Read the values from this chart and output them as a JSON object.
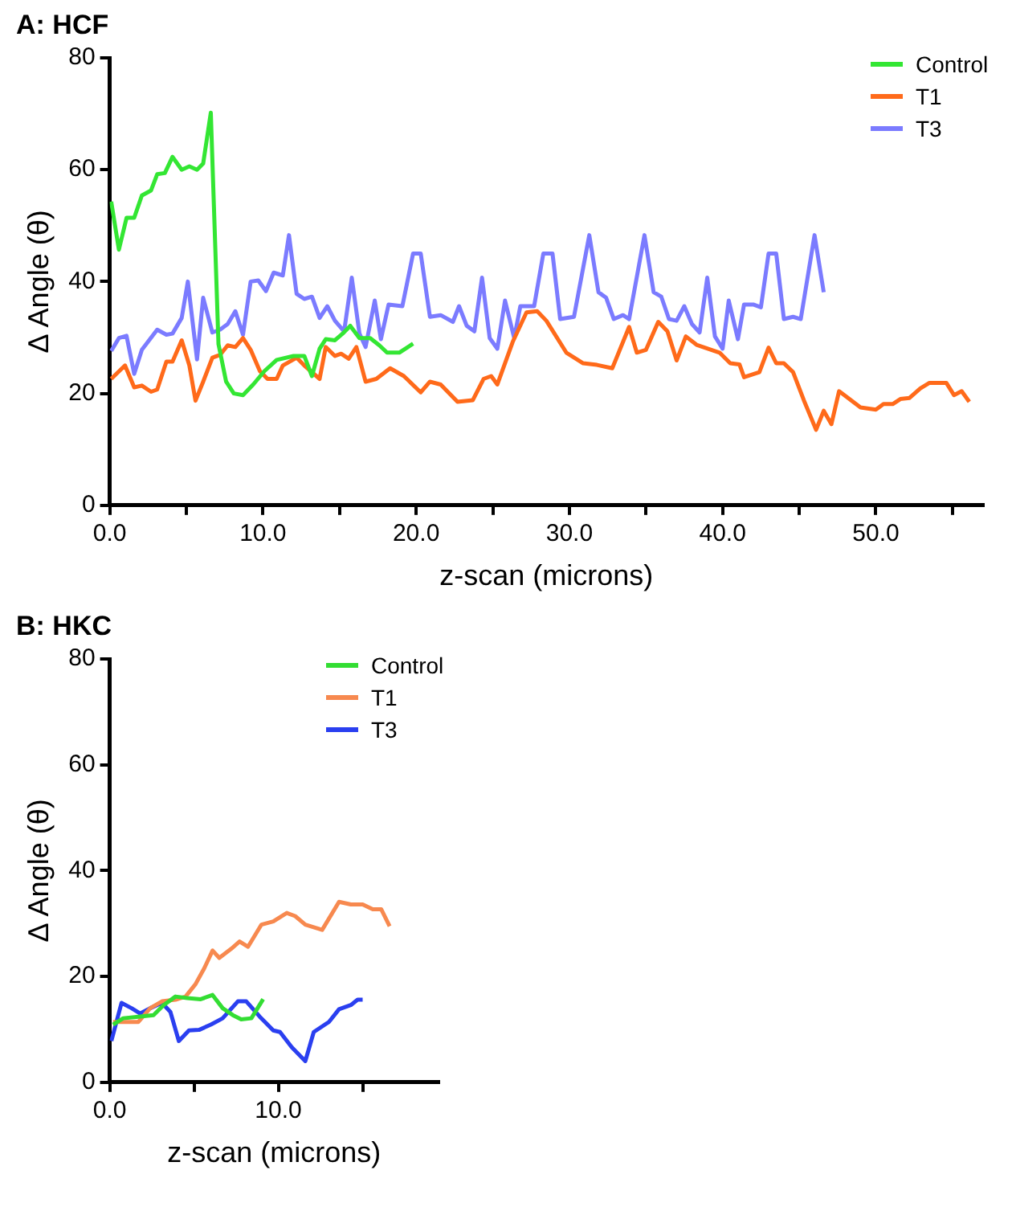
{
  "chart_data": [
    {
      "type": "line",
      "title": "A: HCF",
      "xlabel": "z-scan (microns)",
      "ylabel": "Δ Angle (θ)",
      "xlim": [
        0,
        57
      ],
      "ylim": [
        0,
        80
      ],
      "xticks": [
        {
          "value": 0,
          "label": "0.0"
        },
        {
          "value": 5,
          "label": null
        },
        {
          "value": 10,
          "label": "10.0"
        },
        {
          "value": 15,
          "label": null
        },
        {
          "value": 20,
          "label": "20.0"
        },
        {
          "value": 25,
          "label": null
        },
        {
          "value": 30,
          "label": "30.0"
        },
        {
          "value": 35,
          "label": null
        },
        {
          "value": 40,
          "label": "40.0"
        },
        {
          "value": 45,
          "label": null
        },
        {
          "value": 50,
          "label": "50.0"
        },
        {
          "value": 55,
          "label": null
        }
      ],
      "yticks": [
        0,
        20,
        40,
        60,
        80
      ],
      "grid": false,
      "legend": "top right",
      "marker": "none",
      "line_style": "solid",
      "series": [
        {
          "name": "Control",
          "color": "#33e633",
          "x": [
            0.1,
            0.6,
            1.1,
            1.6,
            2.1,
            2.7,
            3.1,
            3.6,
            4.1,
            4.7,
            5.2,
            5.7,
            6.1,
            6.6,
            7.1,
            7.6,
            8.1,
            8.7,
            9.4,
            10.1,
            10.9,
            12,
            12.7,
            13.2,
            13.7,
            14.1,
            14.7,
            15.2,
            15.7,
            16.3,
            17,
            17.6,
            18.1,
            18.9,
            19.8
          ],
          "values": [
            54.3,
            45.7,
            51.4,
            51.4,
            55.4,
            56.3,
            59.2,
            59.4,
            62.3,
            60,
            60.6,
            60,
            61.1,
            70.2,
            28.8,
            22.1,
            20,
            19.7,
            21.7,
            24,
            26,
            26.7,
            26.7,
            23.1,
            28,
            29.7,
            29.5,
            30.7,
            32.1,
            29.9,
            29.9,
            28.6,
            27.3,
            27.3,
            28.9
          ]
        },
        {
          "name": "T1",
          "color": "#ff6a1a",
          "x": [
            0.1,
            1,
            1.6,
            2.1,
            2.7,
            3.1,
            3.7,
            4.1,
            4.7,
            5.2,
            5.6,
            6.1,
            6.7,
            7.2,
            7.7,
            8.2,
            8.7,
            9.2,
            9.8,
            10.3,
            10.9,
            11.3,
            12.2,
            12.7,
            13.7,
            14.1,
            14.7,
            15.1,
            15.6,
            16.1,
            16.7,
            17.4,
            18.3,
            19.2,
            20.3,
            20.9,
            21.6,
            22.7,
            23.7,
            24.4,
            24.9,
            25.3,
            26.3,
            27.2,
            27.9,
            28.5,
            29.8,
            30.9,
            31.8,
            32.8,
            33.9,
            34.4,
            35,
            35.8,
            36.4,
            37,
            37.6,
            38.3,
            39.8,
            40.5,
            41.1,
            41.4,
            42.4,
            43,
            43.5,
            44,
            44.6,
            45.3,
            46.1,
            46.6,
            47.1,
            47.6,
            49,
            50,
            50.5,
            51.1,
            51.6,
            52.2,
            52.9,
            53.5,
            54.6,
            55.1,
            55.6,
            56.1
          ],
          "values": [
            22.6,
            25,
            21.1,
            21.4,
            20.3,
            20.7,
            25.7,
            25.7,
            29.5,
            25,
            18.7,
            22.1,
            26.4,
            26.9,
            28.6,
            28.3,
            29.9,
            27.8,
            24,
            22.6,
            22.6,
            25,
            26.4,
            25,
            22.6,
            28.3,
            26.7,
            27.1,
            26.2,
            28.3,
            22.1,
            22.6,
            24.5,
            23.1,
            20.2,
            22.1,
            21.6,
            18.5,
            18.8,
            22.6,
            23.1,
            21.6,
            29.2,
            34.5,
            34.7,
            33,
            27.3,
            25.4,
            25.1,
            24.5,
            31.9,
            27.3,
            27.8,
            32.8,
            31.1,
            25.9,
            30.2,
            28.7,
            27.3,
            25.4,
            25.2,
            22.9,
            23.8,
            28.2,
            25.4,
            25.4,
            23.8,
            18.8,
            13.5,
            16.9,
            14.5,
            20.4,
            17.5,
            17.1,
            18.1,
            18.1,
            19,
            19.2,
            20.9,
            21.9,
            21.9,
            19.7,
            20.4,
            18.5
          ]
        },
        {
          "name": "T3",
          "color": "#7b7bff",
          "x": [
            0.1,
            0.6,
            1.1,
            1.6,
            2.1,
            3.1,
            3.7,
            4.1,
            4.7,
            5.1,
            5.7,
            6.1,
            6.7,
            7.2,
            7.7,
            8.2,
            8.7,
            9.2,
            9.7,
            10.2,
            10.7,
            11.3,
            11.7,
            12.2,
            12.7,
            13.2,
            13.7,
            14.2,
            14.7,
            15.3,
            15.8,
            16.3,
            16.7,
            17.3,
            17.7,
            18.2,
            19.1,
            19.8,
            20.3,
            20.9,
            21.6,
            22.4,
            22.8,
            23.3,
            23.8,
            24.3,
            24.8,
            25.3,
            25.8,
            26.4,
            26.8,
            27.7,
            28.3,
            28.9,
            29.4,
            30.3,
            31.3,
            31.9,
            32.4,
            32.9,
            33.5,
            33.9,
            34.9,
            35.5,
            36,
            36.5,
            37,
            37.5,
            38,
            38.5,
            39,
            39.5,
            40,
            40.4,
            41,
            41.4,
            42,
            42.5,
            43,
            43.5,
            44,
            44.6,
            45.1,
            46,
            46.6
          ],
          "values": [
            27.6,
            29.9,
            30.3,
            23.5,
            27.8,
            31.4,
            30.5,
            30.7,
            33.5,
            40,
            26.1,
            37.1,
            30.9,
            31.4,
            32.4,
            34.7,
            30.5,
            40,
            40.2,
            38.3,
            41.6,
            41.1,
            48.3,
            37.8,
            36.9,
            37.3,
            33.5,
            35.6,
            33,
            31.1,
            40.7,
            30.7,
            28.3,
            36.6,
            29.7,
            35.9,
            35.6,
            45,
            45,
            33.7,
            34,
            32.8,
            35.6,
            32.1,
            31.1,
            40.7,
            29.9,
            28,
            36.6,
            29.9,
            35.6,
            35.6,
            45,
            45,
            33.3,
            33.7,
            48.3,
            38.1,
            37.1,
            33.3,
            34,
            33.3,
            48.3,
            38.1,
            37.3,
            33.3,
            33,
            35.6,
            32.4,
            30.9,
            40.7,
            30.2,
            28,
            36.6,
            29.7,
            35.9,
            35.9,
            35.4,
            45,
            45,
            33.3,
            33.7,
            33.3,
            48.3,
            38.1
          ]
        }
      ]
    },
    {
      "type": "line",
      "title": "B: HKC",
      "xlabel": "z-scan (microns)",
      "ylabel": "Δ Angle (θ)",
      "xlim": [
        0,
        19.5
      ],
      "ylim": [
        0,
        80
      ],
      "xticks": [
        {
          "value": 0,
          "label": "0.0"
        },
        {
          "value": 5,
          "label": null
        },
        {
          "value": 10,
          "label": "10.0"
        },
        {
          "value": 15,
          "label": null
        }
      ],
      "yticks": [
        0,
        20,
        40,
        60,
        80
      ],
      "grid": false,
      "legend": "top right",
      "marker": "none",
      "line_style": "solid",
      "series": [
        {
          "name": "Control",
          "color": "#33dd33",
          "x": [
            0.2,
            0.8,
            1.7,
            2.6,
            3.2,
            3.9,
            4.6,
            5.4,
            6.1,
            6.7,
            7.3,
            7.8,
            8.4,
            9.1
          ],
          "values": [
            10.9,
            12.1,
            12.4,
            12.7,
            14.6,
            16.2,
            15.9,
            15.7,
            16.5,
            14,
            12.7,
            11.9,
            12.1,
            15.7
          ]
        },
        {
          "name": "T1",
          "color": "#f7894f",
          "x": [
            0.2,
            0.7,
            1.7,
            2.4,
            3.1,
            3.9,
            4.5,
            5.1,
            5.6,
            6.1,
            6.5,
            7.2,
            7.7,
            8.2,
            9,
            9.7,
            10.5,
            11,
            11.6,
            12.6,
            13.6,
            14.3,
            15,
            15.6,
            16.1,
            16.6
          ],
          "values": [
            11.4,
            11.4,
            11.4,
            14,
            15.3,
            15.6,
            16.2,
            18.6,
            21.5,
            24.9,
            23.5,
            25.2,
            26.6,
            25.6,
            29.8,
            30.4,
            32,
            31.4,
            29.8,
            28.8,
            34.1,
            33.6,
            33.6,
            32.7,
            32.7,
            29.5
          ]
        },
        {
          "name": "T3",
          "color": "#2a3ff0",
          "x": [
            0.1,
            0.7,
            1.3,
            1.8,
            2.4,
            3.1,
            3.6,
            4.1,
            4.7,
            5.3,
            6,
            6.7,
            7.6,
            8.1,
            8.9,
            9.7,
            10.1,
            10.8,
            11.6,
            12.1,
            13,
            13.6,
            14.3,
            14.7,
            15
          ],
          "values": [
            7.8,
            15,
            14,
            13,
            14,
            15,
            13.3,
            7.8,
            9.8,
            9.9,
            10.9,
            12.1,
            15.3,
            15.3,
            12.4,
            9.8,
            9.5,
            6.6,
            4,
            9.5,
            11.4,
            13.8,
            14.6,
            15.6,
            15.6
          ]
        }
      ]
    }
  ]
}
